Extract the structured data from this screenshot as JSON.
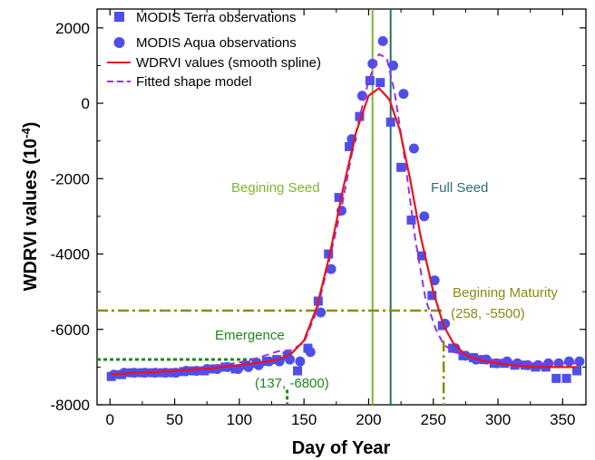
{
  "chart_data": {
    "type": "scatter",
    "xlabel": "Day of Year",
    "ylabel_main": "WDRVI values (10",
    "ylabel_sup": "-4",
    "ylabel_close": ")",
    "xlim": [
      -10,
      368
    ],
    "ylim": [
      -8000,
      2500
    ],
    "xticks": [
      0,
      50,
      100,
      150,
      200,
      250,
      300,
      350
    ],
    "yticks": [
      -8000,
      -6000,
      -4000,
      -2000,
      0,
      2000
    ],
    "grid": false,
    "legend_position": "top-left",
    "colors": {
      "terra": "#4f4fe8",
      "aqua": "#4f4fe8",
      "spline": "#e8141a",
      "shape_model": "#9b30e0",
      "beginning_seed": "#7cb82f",
      "full_seed": "#2c6e73",
      "beginning_maturity": "#8c8a12",
      "emergence": "#1a8a1a"
    },
    "series": [
      {
        "name": "MODIS Terra observations",
        "marker": "square",
        "x": [
          1,
          9,
          17,
          25,
          33,
          41,
          49,
          57,
          65,
          73,
          81,
          89,
          97,
          105,
          113,
          121,
          129,
          137,
          145,
          153,
          161,
          169,
          177,
          185,
          193,
          201,
          209,
          217,
          225,
          233,
          241,
          249,
          257,
          265,
          273,
          281,
          289,
          297,
          305,
          313,
          321,
          329,
          337,
          345,
          353,
          361
        ],
        "y": [
          -7250,
          -7200,
          -7150,
          -7150,
          -7150,
          -7150,
          -7150,
          -7120,
          -7100,
          -7100,
          -7050,
          -7000,
          -7050,
          -6950,
          -6900,
          -6850,
          -6800,
          -6700,
          -7100,
          -6500,
          -5250,
          -4000,
          -2500,
          -1150,
          -350,
          600,
          550,
          -500,
          -1700,
          -3100,
          -4050,
          -5100,
          -5900,
          -6500,
          -6700,
          -6750,
          -6800,
          -6900,
          -6900,
          -6950,
          -6950,
          -7000,
          -7000,
          -7300,
          -7300,
          -7100
        ]
      },
      {
        "name": "MODIS Aqua observations",
        "marker": "circle",
        "x": [
          3,
          11,
          19,
          27,
          35,
          43,
          51,
          59,
          67,
          75,
          83,
          91,
          99,
          107,
          115,
          123,
          131,
          139,
          147,
          155,
          163,
          171,
          179,
          187,
          195,
          203,
          211,
          219,
          227,
          235,
          243,
          251,
          259,
          267,
          275,
          283,
          291,
          299,
          307,
          315,
          323,
          331,
          339,
          347,
          355,
          363
        ],
        "y": [
          -7200,
          -7150,
          -7150,
          -7150,
          -7150,
          -7150,
          -7150,
          -7100,
          -7100,
          -7050,
          -7050,
          -7000,
          -7050,
          -7000,
          -6950,
          -6850,
          -6850,
          -6800,
          -6850,
          -6600,
          -5550,
          -4400,
          -2850,
          -950,
          200,
          1050,
          1650,
          1000,
          250,
          -1200,
          -3000,
          -4700,
          -5850,
          -6500,
          -6700,
          -6800,
          -6800,
          -6900,
          -6850,
          -6900,
          -6950,
          -6950,
          -6900,
          -6900,
          -6850,
          -6850
        ]
      },
      {
        "name": "WDRVI values (smooth spline)",
        "line": "solid",
        "x": [
          0,
          20,
          40,
          60,
          80,
          100,
          115,
          130,
          140,
          150,
          160,
          170,
          180,
          190,
          200,
          208,
          216,
          224,
          232,
          240,
          250,
          258,
          266,
          276,
          290,
          310,
          330,
          350,
          362
        ],
        "y": [
          -7200,
          -7150,
          -7120,
          -7080,
          -7030,
          -6950,
          -6880,
          -6800,
          -6650,
          -6300,
          -5400,
          -4000,
          -2300,
          -800,
          200,
          400,
          100,
          -700,
          -2000,
          -3500,
          -5000,
          -5900,
          -6400,
          -6700,
          -6850,
          -6950,
          -7000,
          -7000,
          -7000
        ]
      },
      {
        "name": "Fitted shape model",
        "line": "dashed",
        "x": [
          0,
          20,
          40,
          60,
          80,
          100,
          115,
          130,
          140,
          150,
          160,
          170,
          180,
          190,
          200,
          208,
          214,
          220,
          228,
          236,
          244,
          252,
          258,
          266,
          276,
          290,
          310,
          330,
          350,
          362
        ],
        "y": [
          -7200,
          -7150,
          -7100,
          -7060,
          -6980,
          -6880,
          -6750,
          -6580,
          -6550,
          -6350,
          -5500,
          -4100,
          -2600,
          -800,
          600,
          1300,
          1200,
          300,
          -1500,
          -3600,
          -5200,
          -6000,
          -6400,
          -6600,
          -6700,
          -6800,
          -6850,
          -6900,
          -6900,
          -6900
        ]
      }
    ],
    "annotations": {
      "beginning_seed": {
        "label": "Begining Seed",
        "x": 203
      },
      "full_seed": {
        "label": "Full Seed",
        "x": 217
      },
      "beginning_maturity": {
        "label": "Begining Maturity",
        "coords": "(258, -5500)",
        "x": 258,
        "y": -5500
      },
      "emergence": {
        "label": "Emergence",
        "coords": "(137, -6800)",
        "x": 137,
        "y": -6800
      }
    }
  }
}
